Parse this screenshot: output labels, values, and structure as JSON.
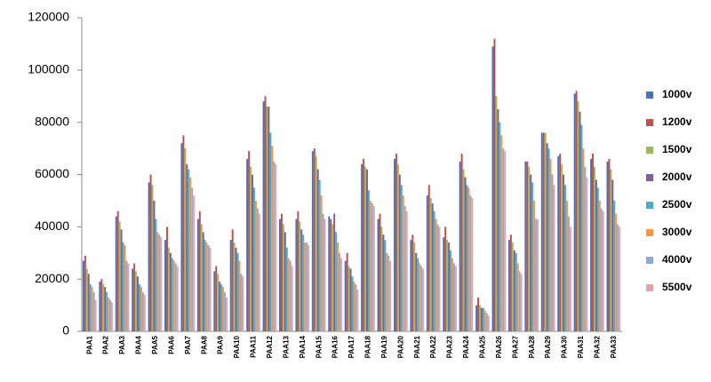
{
  "chart_data": {
    "type": "bar",
    "categories": [
      "PAA1",
      "PAA2",
      "PAA3",
      "PAA4",
      "PAA5",
      "PAA6",
      "PAA7",
      "PAA8",
      "PAA9",
      "PAA10",
      "PAA11",
      "PAA12",
      "PAA13",
      "PAA14",
      "PAA15",
      "PAA16",
      "PAA17",
      "PAA18",
      "PAA19",
      "PAA20",
      "PAA21",
      "PAA22",
      "PAA23",
      "PAA24",
      "PAA25",
      "PAA26",
      "PAA27",
      "PAA28",
      "PAA29",
      "PAA30",
      "PAA31",
      "PAA32",
      "PAA33"
    ],
    "series": [
      {
        "name": "1000v",
        "color": "#4a72b8",
        "values": [
          27000,
          19000,
          44000,
          24000,
          57000,
          35000,
          72000,
          43000,
          23000,
          35000,
          66000,
          88000,
          43000,
          43000,
          69000,
          44000,
          27000,
          64000,
          43000,
          66000,
          35000,
          52000,
          36000,
          65000,
          10000,
          109000,
          35000,
          65000,
          76000,
          67000,
          91000,
          66000,
          65000
        ]
      },
      {
        "name": "1200v",
        "color": "#c0504d",
        "values": [
          29000,
          20000,
          46000,
          26000,
          60000,
          40000,
          75000,
          46000,
          25000,
          39000,
          69000,
          90000,
          45000,
          46000,
          70000,
          43000,
          30000,
          66000,
          45000,
          68000,
          37000,
          56000,
          40000,
          68000,
          13000,
          112000,
          37000,
          65000,
          76000,
          68000,
          92000,
          68000,
          66000
        ]
      },
      {
        "name": "1500v",
        "color": "#9bbb59",
        "values": [
          24000,
          18000,
          42000,
          23000,
          56000,
          32000,
          70000,
          41000,
          22000,
          34000,
          63000,
          86000,
          41000,
          42000,
          67000,
          41000,
          25000,
          63000,
          40000,
          64000,
          34000,
          51000,
          35000,
          62000,
          10000,
          90000,
          34000,
          63000,
          76000,
          64000,
          88000,
          63000,
          62000
        ]
      },
      {
        "name": "2000v",
        "color": "#7d5fa0",
        "values": [
          22000,
          17000,
          39000,
          21000,
          50000,
          30000,
          64000,
          38000,
          19000,
          32000,
          60000,
          86000,
          38000,
          39000,
          62000,
          45000,
          24000,
          62000,
          37000,
          60000,
          30000,
          49000,
          34000,
          59000,
          9000,
          85000,
          31000,
          60000,
          72000,
          60000,
          84000,
          58000,
          58000
        ]
      },
      {
        "name": "2500v",
        "color": "#4bacc6",
        "values": [
          18000,
          15000,
          34000,
          18000,
          43000,
          28000,
          62000,
          35000,
          18000,
          30000,
          55000,
          76000,
          32000,
          37000,
          58000,
          38000,
          21000,
          54000,
          35000,
          56000,
          28000,
          46000,
          31000,
          56000,
          9000,
          80000,
          30000,
          57000,
          70000,
          56000,
          79000,
          55000,
          50000
        ]
      },
      {
        "name": "3000v",
        "color": "#f79646",
        "values": [
          17000,
          13000,
          33000,
          17000,
          38000,
          27000,
          59000,
          34000,
          17000,
          27000,
          50000,
          71000,
          28000,
          34000,
          52000,
          34000,
          19000,
          50000,
          30000,
          52000,
          26000,
          43000,
          28000,
          55000,
          8000,
          75000,
          26000,
          50000,
          66000,
          50000,
          70000,
          50000,
          45000
        ]
      },
      {
        "name": "4000v",
        "color": "#8eaadb",
        "values": [
          15000,
          12000,
          27000,
          15000,
          37000,
          26000,
          55000,
          33000,
          15000,
          22000,
          47000,
          65000,
          27000,
          34000,
          45000,
          30000,
          18000,
          49000,
          29000,
          48000,
          25000,
          41000,
          26000,
          52000,
          7000,
          70000,
          23000,
          43000,
          60000,
          44000,
          63000,
          47000,
          41000
        ]
      },
      {
        "name": "5500v",
        "color": "#e6a5a3",
        "values": [
          12000,
          11000,
          26000,
          14000,
          36000,
          25000,
          52000,
          32000,
          13000,
          21000,
          45000,
          64000,
          25000,
          33000,
          43000,
          28000,
          16000,
          48000,
          27000,
          46000,
          24000,
          40000,
          25000,
          51000,
          6000,
          69000,
          22000,
          43000,
          56000,
          40000,
          59000,
          46000,
          40000
        ]
      }
    ],
    "ylim": [
      0,
      120000
    ],
    "yticks": [
      0,
      20000,
      40000,
      60000,
      80000,
      100000,
      120000
    ],
    "grid": false,
    "legend": "right"
  }
}
